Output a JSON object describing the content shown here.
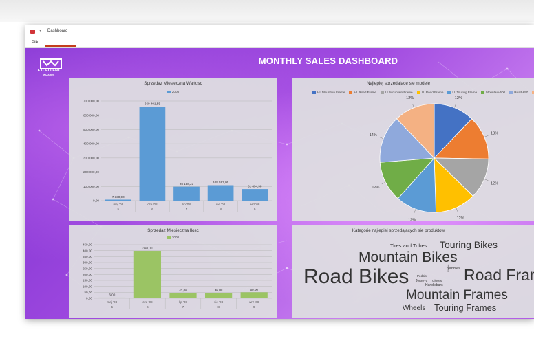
{
  "window": {
    "title": "Dashboard",
    "ribbon_tab": "Plik"
  },
  "dashboard": {
    "title": "MONTHLY SALES DASHBOARD",
    "logo_line1": "EXCELLENT",
    "logo_line2": "WIZARDS"
  },
  "colors": {
    "bar_blue": "#5b9bd5",
    "bar_green": "#9bc464",
    "canvas_purple": "#9a45de"
  },
  "chart_data": [
    {
      "type": "bar",
      "title": "Sprzedaz Miesieczna Wartosc",
      "series": [
        {
          "name": "2008",
          "values": [
            7330.9,
            660401.55,
            98138.21,
            108597.05,
            81634.98
          ]
        }
      ],
      "categories": [
        "maj '08",
        "cze '08",
        "lip '08",
        "sie '08",
        "wrz '08"
      ],
      "subcategories": [
        "5",
        "6",
        "7",
        "8",
        "9"
      ],
      "data_labels": [
        "7 330,90",
        "660 401,55",
        "98 138,21",
        "108 597,05",
        "81 634,98"
      ],
      "y_ticks": [
        "0,00",
        "100 000,00",
        "200 000,00",
        "300 000,00",
        "400 000,00",
        "500 000,00",
        "600 000,00",
        "700 000,00"
      ],
      "ylim": [
        0,
        700000
      ],
      "grid": true,
      "legend": "top-center"
    },
    {
      "type": "pie",
      "title": "Najlepiej sprzedajace sie modele",
      "labels": [
        "HL Mountain Frame",
        "HL Road Frame",
        "LL Mountain Frame",
        "LL Road Frame",
        "LL Touring Frame",
        "Mountain-500",
        "Road-650",
        ""
      ],
      "values": [
        12,
        13,
        12,
        12,
        12,
        12,
        14,
        12
      ],
      "data_labels": [
        "12%",
        "13%",
        "12%",
        "12%",
        "12%",
        "12%",
        "14%",
        "12%"
      ],
      "colors": [
        "#4472c4",
        "#ed7d31",
        "#a5a5a5",
        "#ffc000",
        "#5b9bd5",
        "#70ad47",
        "#8fa9dc",
        "#f4b183"
      ],
      "legend": "top"
    },
    {
      "type": "bar",
      "title": "Sprzedaz Miesieczna Ilosc",
      "series": [
        {
          "name": "2008",
          "values": [
            6,
            398,
            42,
            46,
            50
          ]
        }
      ],
      "categories": [
        "maj '08",
        "cze '08",
        "lip '08",
        "sie '08",
        "wrz '08"
      ],
      "subcategories": [
        "5",
        "6",
        "7",
        "8",
        "9"
      ],
      "data_labels": [
        "6,00",
        "398,00",
        "42,00",
        "46,00",
        "50,00"
      ],
      "y_ticks": [
        "0,00",
        "50,00",
        "100,00",
        "150,00",
        "200,00",
        "250,00",
        "300,00",
        "350,00",
        "400,00",
        "450,00"
      ],
      "ylim": [
        0,
        450
      ],
      "grid": true,
      "legend": "top-center"
    }
  ],
  "word_cloud": {
    "title": "Kategorie najlepiej sprzedajacych sie produktow",
    "words": [
      {
        "text": "Tires and Tubes",
        "size": 7.5
      },
      {
        "text": "Touring Bikes",
        "size": 14
      },
      {
        "text": "Mountain Bikes",
        "size": 21
      },
      {
        "text": "Road Bikes",
        "size": 30
      },
      {
        "text": "Road Frames",
        "size": 23
      },
      {
        "text": "Saddles",
        "size": 5.5
      },
      {
        "text": "Pedals",
        "size": 4.5
      },
      {
        "text": "Jerseys",
        "size": 5
      },
      {
        "text": "Gloves",
        "size": 4.5
      },
      {
        "text": "Handlebars",
        "size": 5
      },
      {
        "text": "Shorts",
        "size": 4
      },
      {
        "text": "Mountain Frames",
        "size": 19
      },
      {
        "text": "Touring Frames",
        "size": 13
      },
      {
        "text": "Wheels",
        "size": 10
      }
    ]
  }
}
